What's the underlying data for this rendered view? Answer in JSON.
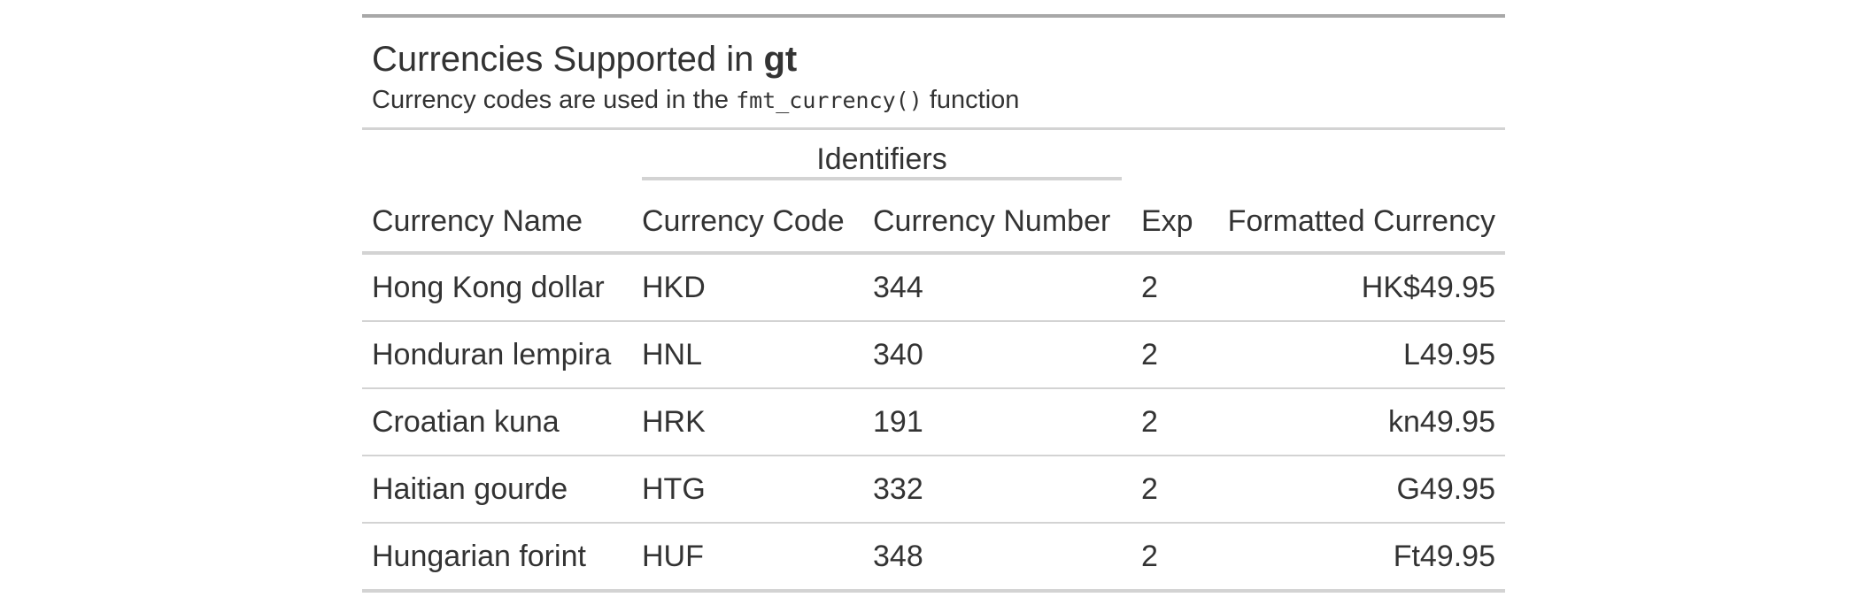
{
  "table": {
    "title_prefix": "Currencies Supported in ",
    "title_bold": "gt",
    "subtitle_prefix": "Currency codes are used in the ",
    "subtitle_code": "fmt_currency()",
    "subtitle_suffix": " function",
    "spanner": "Identifiers",
    "columns": {
      "name": "Currency Name",
      "code": "Currency Code",
      "number": "Currency Number",
      "exp": "Exp",
      "formatted": "Formatted Currency"
    },
    "rows": [
      {
        "name": "Hong Kong dollar",
        "code": "HKD",
        "number": "344",
        "exp": "2",
        "formatted": "HK$49.95"
      },
      {
        "name": "Honduran lempira",
        "code": "HNL",
        "number": "340",
        "exp": "2",
        "formatted": "L49.95"
      },
      {
        "name": "Croatian kuna",
        "code": "HRK",
        "number": "191",
        "exp": "2",
        "formatted": "kn49.95"
      },
      {
        "name": "Haitian gourde",
        "code": "HTG",
        "number": "332",
        "exp": "2",
        "formatted": "G49.95"
      },
      {
        "name": "Hungarian forint",
        "code": "HUF",
        "number": "348",
        "exp": "2",
        "formatted": "Ft49.95"
      }
    ]
  }
}
